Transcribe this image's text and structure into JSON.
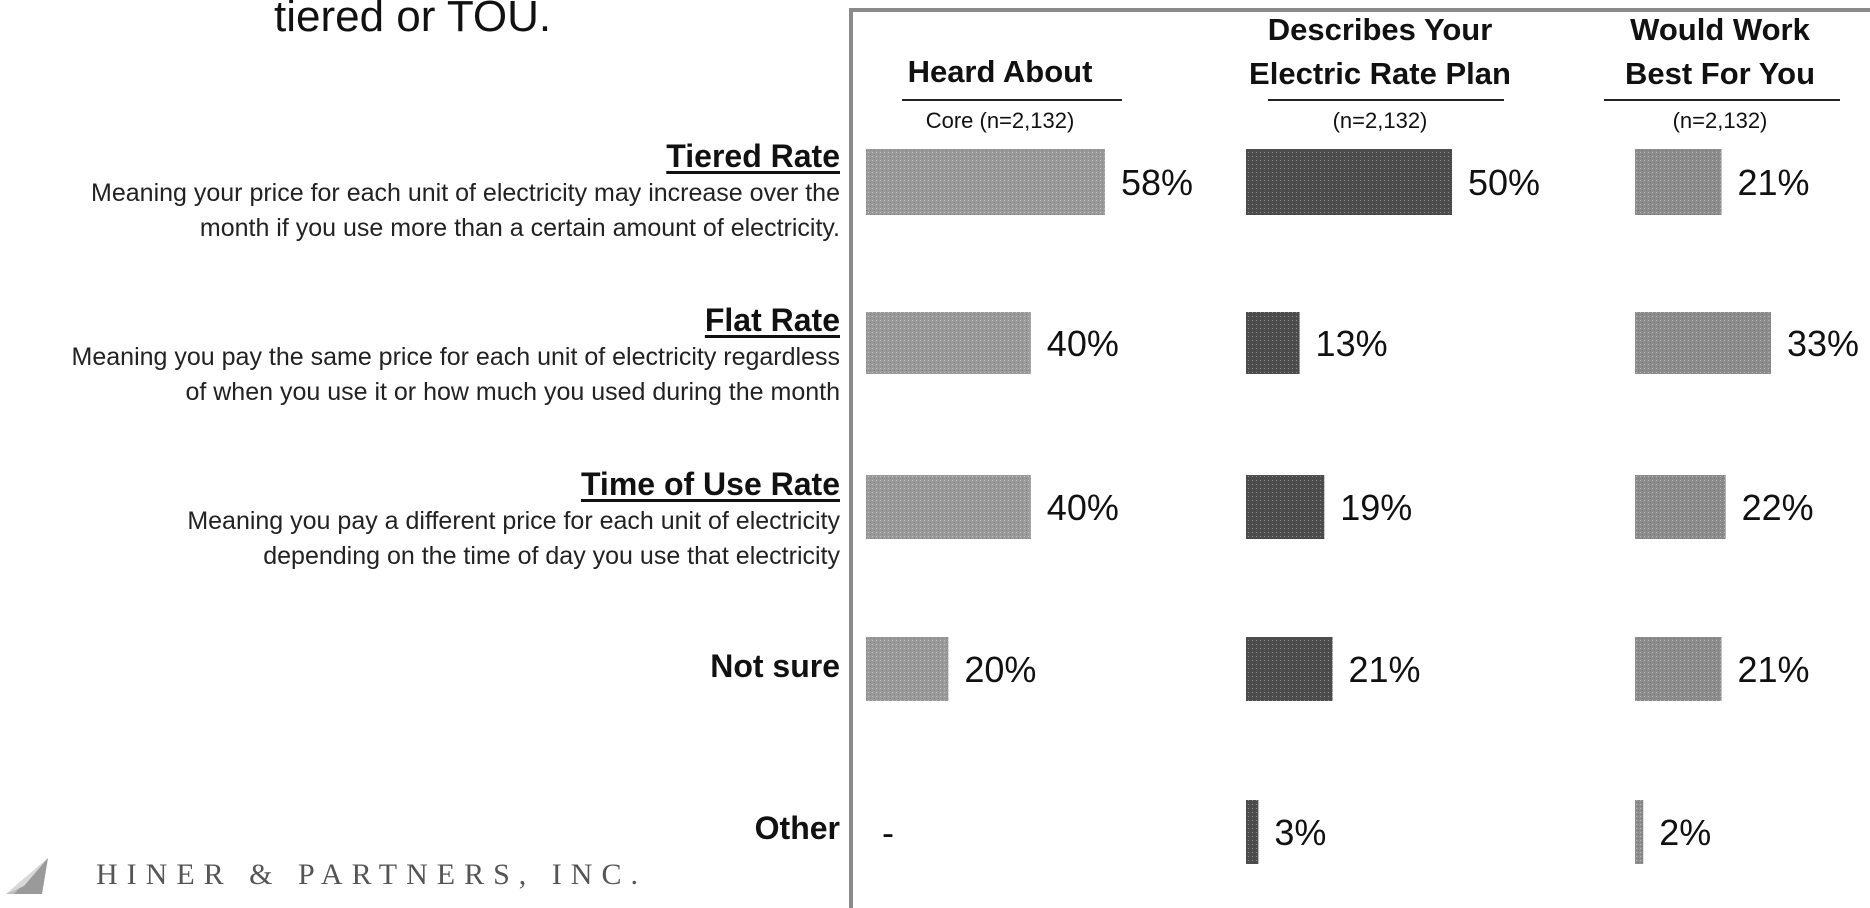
{
  "header": {
    "title_fragment": "tiered or TOU."
  },
  "chart_data": {
    "type": "bar",
    "orientation": "horizontal",
    "categories": [
      "Tiered Rate",
      "Flat Rate",
      "Time of Use Rate",
      "Not sure",
      "Other"
    ],
    "category_descriptions": [
      [
        "Meaning your price for each unit of electricity may increase over the",
        "month if you use more than a certain amount of electricity."
      ],
      [
        "Meaning you pay the same price for each unit of electricity regardless",
        "of when you use it or how much you used during the month"
      ],
      [
        "Meaning you pay a different price for each unit of electricity",
        "depending on the time of day you use that electricity"
      ],
      [],
      []
    ],
    "series": [
      {
        "name": "Heard About",
        "name_lines": [
          "Heard About"
        ],
        "sample": "Core (n=2,132)",
        "values": [
          58,
          40,
          40,
          20,
          null
        ],
        "labels": [
          "58%",
          "40%",
          "40%",
          "20%",
          "-"
        ],
        "color": "#9a9a9a"
      },
      {
        "name": "Describes Your Electric Rate Plan",
        "name_lines": [
          "Describes Your",
          "Electric Rate Plan"
        ],
        "sample": "(n=2,132)",
        "values": [
          50,
          13,
          19,
          21,
          3
        ],
        "labels": [
          "50%",
          "13%",
          "19%",
          "21%",
          "3%"
        ],
        "color": "#4d4d4d"
      },
      {
        "name": "Would Work Best For You",
        "name_lines": [
          "Would Work",
          "Best For You"
        ],
        "sample": "(n=2,132)",
        "values": [
          21,
          33,
          22,
          21,
          2
        ],
        "labels": [
          "21%",
          "33%",
          "22%",
          "21%",
          "2%"
        ],
        "color": "#8c8c8c"
      }
    ],
    "unit": "%",
    "grid": false,
    "legend": "none"
  },
  "logo": {
    "text": "HINER & PARTNERS, INC."
  }
}
